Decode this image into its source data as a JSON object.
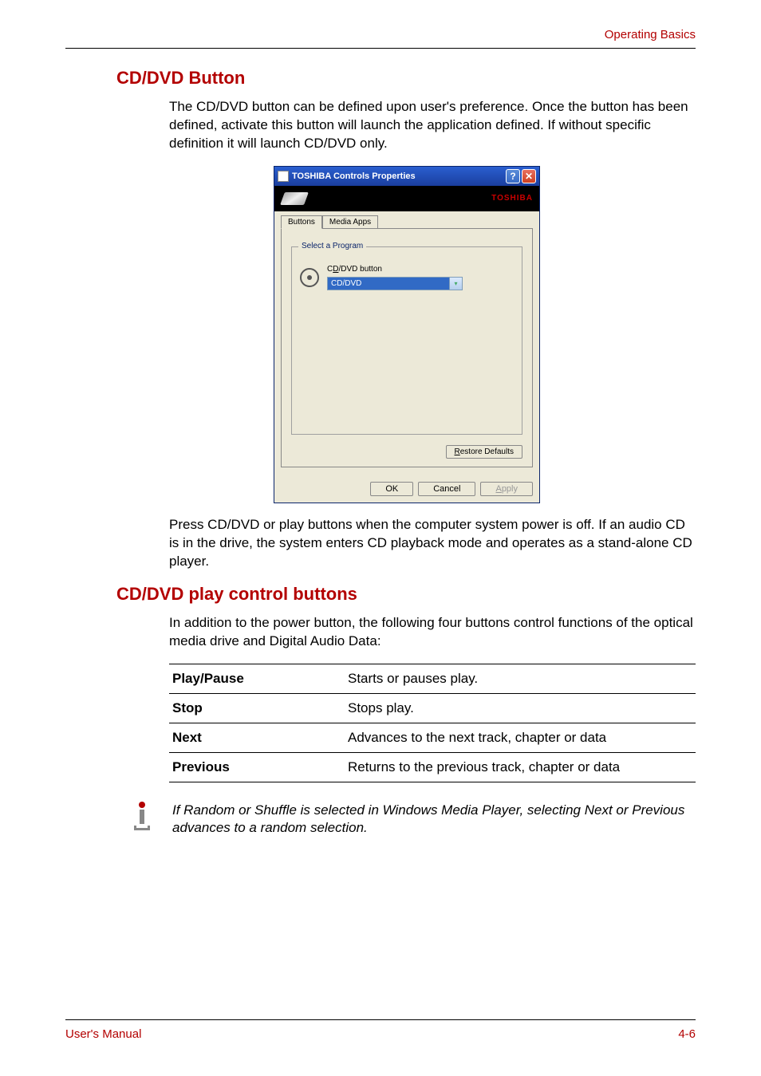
{
  "header": {
    "link": "Operating Basics"
  },
  "section1": {
    "heading": "CD/DVD Button",
    "para1": "The CD/DVD  button can be defined upon user's preference. Once the button has been defined, activate this button will launch the application defined. If without specific definition it will launch CD/DVD only.",
    "para2": "Press CD/DVD or play buttons when the computer system power is off. If an audio CD is in the drive, the system enters CD playback mode and operates as a stand-alone CD player."
  },
  "dialog": {
    "title": "TOSHIBA Controls Properties",
    "brand": "TOSHIBA",
    "tabs": {
      "buttons": "Buttons",
      "media": "Media Apps"
    },
    "fieldset_legend": "Select a Program",
    "program_label": "CD/DVD button",
    "program_select": "CD/DVD",
    "restore": "Restore Defaults",
    "ok": "OK",
    "cancel": "Cancel",
    "apply": "Apply"
  },
  "section2": {
    "heading": "CD/DVD play control buttons",
    "para": "In addition to the power button, the following four buttons control functions of the optical media drive and Digital Audio Data:"
  },
  "table": {
    "rows": [
      {
        "name": "Play/Pause",
        "desc": "Starts or pauses play."
      },
      {
        "name": "Stop",
        "desc": "Stops play."
      },
      {
        "name": "Next",
        "desc": "Advances to the next track, chapter or data"
      },
      {
        "name": "Previous",
        "desc": "Returns to the previous track, chapter or data"
      }
    ]
  },
  "note": "If Random or Shuffle is selected in Windows Media Player, selecting Next or Previous advances to a random selection.",
  "footer": {
    "left": "User's Manual",
    "right": "4-6"
  },
  "colors": {
    "accent": "#b30000",
    "dialog_bg": "#ece9d8",
    "titlebar_start": "#2a5fd0",
    "titlebar_end": "#1a3e9e",
    "select_bg": "#316ac5"
  }
}
